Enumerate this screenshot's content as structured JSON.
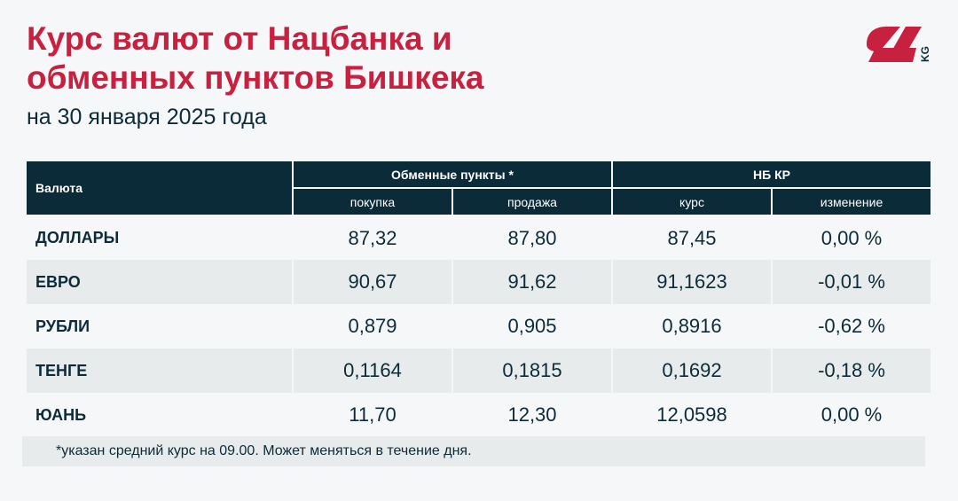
{
  "title": "Курс валют от Нацбанка и обменных пунктов Бишкека",
  "title_line1": "Курс валют от Нацбанка и",
  "title_line2": "обменных пунктов Бишкека",
  "subtitle": "на 30 января 2025 года",
  "logo": {
    "text": "24 KG",
    "colors": {
      "red": "#c8203f",
      "dark": "#0c2b39"
    }
  },
  "table": {
    "headers": {
      "currency": "Валюта",
      "exchange": "Обменные пункты *",
      "nb": "НБ КР",
      "buy": "покупка",
      "sell": "продажа",
      "rate": "курс",
      "change": "изменение"
    },
    "rows": [
      {
        "name": "ДОЛЛАРЫ",
        "buy": "87,32",
        "sell": "87,80",
        "rate": "87,45",
        "change": "0,00 %"
      },
      {
        "name": "ЕВРО",
        "buy": "90,67",
        "sell": "91,62",
        "rate": "91,1623",
        "change": "-0,01 %"
      },
      {
        "name": "РУБЛИ",
        "buy": "0,879",
        "sell": "0,905",
        "rate": "0,8916",
        "change": "-0,62 %"
      },
      {
        "name": "ТЕНГЕ",
        "buy": "0,1164",
        "sell": "0,1815",
        "rate": "0,1692",
        "change": "-0,18 %"
      },
      {
        "name": "ЮАНЬ",
        "buy": "11,70",
        "sell": "12,30",
        "rate": "12,0598",
        "change": "0,00 %"
      }
    ]
  },
  "footnote": "*указан средний курс на 09.00. Может меняться в течение дня."
}
